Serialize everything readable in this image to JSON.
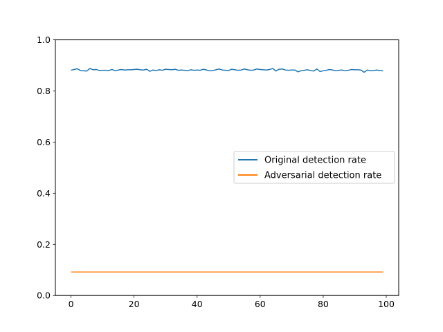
{
  "chart_data": {
    "type": "line",
    "title": "",
    "xlabel": "",
    "ylabel": "",
    "xlim": [
      -4.95,
      103.95
    ],
    "ylim": [
      0.0,
      1.0
    ],
    "xticks": [
      0,
      20,
      40,
      60,
      80,
      100
    ],
    "yticks": [
      0.0,
      0.2,
      0.4,
      0.6,
      0.8,
      1.0
    ],
    "xtick_labels": [
      "0",
      "20",
      "40",
      "60",
      "80",
      "100"
    ],
    "ytick_labels": [
      "0.0",
      "0.2",
      "0.4",
      "0.6",
      "0.8",
      "1.0"
    ],
    "grid": false,
    "legend_position": "center-right",
    "series": [
      {
        "name": "Original detection rate",
        "color": "#1f77b4",
        "x_start": 0,
        "x_step": 1,
        "values": [
          0.881,
          0.884,
          0.887,
          0.88,
          0.879,
          0.878,
          0.888,
          0.883,
          0.884,
          0.88,
          0.881,
          0.881,
          0.88,
          0.884,
          0.879,
          0.882,
          0.884,
          0.882,
          0.883,
          0.883,
          0.884,
          0.885,
          0.883,
          0.882,
          0.885,
          0.877,
          0.882,
          0.88,
          0.883,
          0.881,
          0.885,
          0.884,
          0.883,
          0.885,
          0.881,
          0.882,
          0.881,
          0.879,
          0.883,
          0.881,
          0.882,
          0.881,
          0.885,
          0.882,
          0.879,
          0.88,
          0.883,
          0.886,
          0.882,
          0.881,
          0.88,
          0.885,
          0.883,
          0.881,
          0.882,
          0.886,
          0.883,
          0.881,
          0.882,
          0.886,
          0.884,
          0.883,
          0.882,
          0.884,
          0.888,
          0.878,
          0.885,
          0.886,
          0.882,
          0.881,
          0.882,
          0.882,
          0.875,
          0.879,
          0.881,
          0.883,
          0.88,
          0.878,
          0.886,
          0.876,
          0.879,
          0.881,
          0.884,
          0.882,
          0.879,
          0.881,
          0.882,
          0.879,
          0.881,
          0.884,
          0.883,
          0.883,
          0.882,
          0.873,
          0.882,
          0.879,
          0.88,
          0.882,
          0.88,
          0.879
        ]
      },
      {
        "name": "Adversarial detection rate",
        "color": "#ff7f0e",
        "x_start": 0,
        "x_step": 1,
        "values": [
          0.092,
          0.092,
          0.092,
          0.092,
          0.092,
          0.092,
          0.092,
          0.092,
          0.092,
          0.092,
          0.092,
          0.092,
          0.092,
          0.092,
          0.092,
          0.092,
          0.092,
          0.092,
          0.092,
          0.092,
          0.092,
          0.092,
          0.092,
          0.092,
          0.092,
          0.092,
          0.092,
          0.092,
          0.092,
          0.092,
          0.092,
          0.092,
          0.092,
          0.092,
          0.092,
          0.092,
          0.092,
          0.092,
          0.092,
          0.092,
          0.092,
          0.092,
          0.092,
          0.092,
          0.092,
          0.092,
          0.092,
          0.092,
          0.092,
          0.092,
          0.092,
          0.092,
          0.092,
          0.092,
          0.092,
          0.092,
          0.092,
          0.092,
          0.092,
          0.092,
          0.092,
          0.092,
          0.092,
          0.092,
          0.092,
          0.092,
          0.092,
          0.092,
          0.092,
          0.092,
          0.092,
          0.092,
          0.092,
          0.092,
          0.092,
          0.092,
          0.092,
          0.092,
          0.092,
          0.092,
          0.092,
          0.092,
          0.092,
          0.092,
          0.092,
          0.092,
          0.092,
          0.092,
          0.092,
          0.092,
          0.092,
          0.092,
          0.092,
          0.092,
          0.092,
          0.092,
          0.092,
          0.092,
          0.092,
          0.092
        ]
      }
    ]
  }
}
